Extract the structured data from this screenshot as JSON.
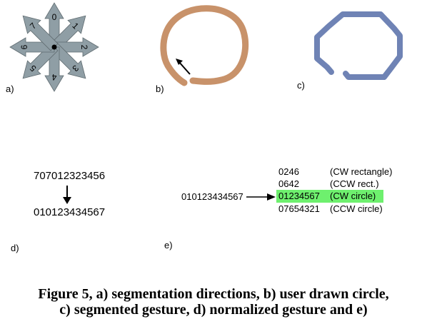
{
  "colors": {
    "compass": "#8f9ea5",
    "compass_stroke": "#5f6b70",
    "drawn_circle": "#c8926a",
    "segmented_gesture": "#6f83b5",
    "highlight": "#6ef06e"
  },
  "panel_a": {
    "label": "a)",
    "directions": [
      "0",
      "1",
      "2",
      "3",
      "4",
      "5",
      "6",
      "7"
    ]
  },
  "panel_b": {
    "label": "b)"
  },
  "panel_c": {
    "label": "c)"
  },
  "panel_d": {
    "label": "d)",
    "input_sequence": "707012323456",
    "normalized_sequence": "010123434567"
  },
  "panel_e": {
    "label": "e)",
    "query": "010123434567",
    "matches": [
      {
        "code": "0246",
        "name": "(CW rectangle)",
        "highlighted": false
      },
      {
        "code": "0642",
        "name": "(CCW rect.)",
        "highlighted": false
      },
      {
        "code": "01234567",
        "name": "(CW circle)",
        "highlighted": true
      },
      {
        "code": "07654321",
        "name": "(CCW circle)",
        "highlighted": false
      }
    ]
  },
  "caption": {
    "line1": "Figure 5, a) segmentation directions, b) user drawn circle,",
    "line2": "c) segmented gesture, d) normalized gesture and e)"
  }
}
